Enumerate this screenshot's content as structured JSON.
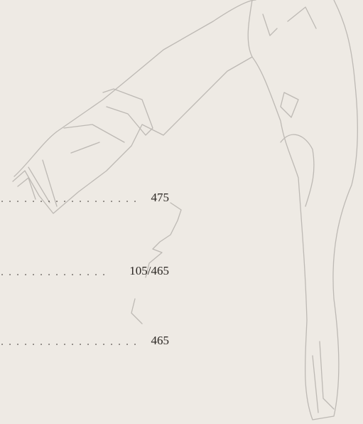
{
  "entries": [
    {
      "page": "475"
    },
    {
      "page": "105/465"
    },
    {
      "page": "465"
    }
  ]
}
